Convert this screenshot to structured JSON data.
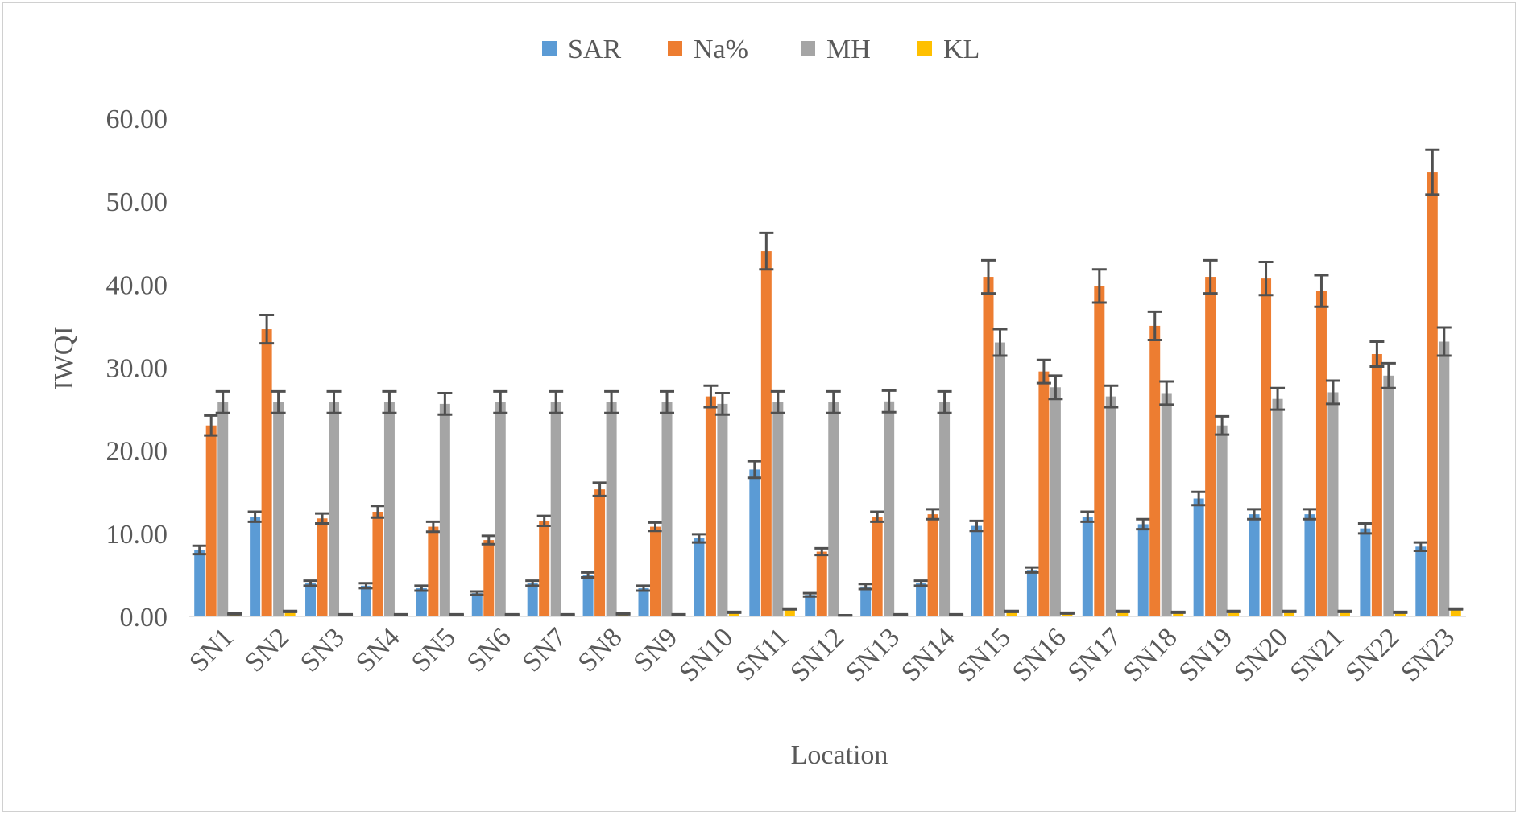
{
  "chart_data": {
    "type": "bar",
    "title": "",
    "xlabel": "Location",
    "ylabel": "IWQI",
    "ylim": [
      0,
      60
    ],
    "yticks": [
      "0.00",
      "10.00",
      "20.00",
      "30.00",
      "40.00",
      "50.00",
      "60.00"
    ],
    "grid": false,
    "legend_position": "top-center",
    "categories": [
      "SN1",
      "SN2",
      "SN3",
      "SN4",
      "SN5",
      "SN6",
      "SN7",
      "SN8",
      "SN9",
      "SN10",
      "SN11",
      "SN12",
      "SN13",
      "SN14",
      "SN15",
      "SN16",
      "SN17",
      "SN18",
      "SN19",
      "SN20",
      "SN21",
      "SN22",
      "SN23"
    ],
    "series": [
      {
        "name": "SAR",
        "color": "#5B9BD5",
        "values": [
          8.0,
          12.0,
          4.0,
          3.7,
          3.4,
          2.8,
          4.0,
          5.0,
          3.4,
          9.4,
          17.7,
          2.6,
          3.6,
          4.0,
          10.9,
          5.6,
          12.0,
          11.1,
          14.2,
          12.3,
          12.3,
          10.6,
          8.4
        ],
        "errors": [
          0.5,
          0.6,
          0.3,
          0.3,
          0.3,
          0.2,
          0.3,
          0.3,
          0.3,
          0.5,
          1.0,
          0.2,
          0.3,
          0.3,
          0.6,
          0.3,
          0.6,
          0.6,
          0.8,
          0.6,
          0.6,
          0.6,
          0.5
        ]
      },
      {
        "name": "Na%",
        "color": "#ED7D31",
        "values": [
          23.0,
          34.6,
          11.8,
          12.6,
          10.8,
          9.2,
          11.5,
          15.3,
          10.8,
          26.5,
          44.0,
          7.8,
          12.0,
          12.3,
          40.9,
          29.5,
          39.8,
          35.0,
          40.9,
          40.7,
          39.2,
          31.6,
          53.5
        ],
        "errors": [
          1.2,
          1.7,
          0.6,
          0.7,
          0.6,
          0.5,
          0.6,
          0.8,
          0.5,
          1.3,
          2.2,
          0.4,
          0.6,
          0.6,
          2.0,
          1.4,
          2.0,
          1.7,
          2.0,
          2.0,
          1.9,
          1.5,
          2.7
        ]
      },
      {
        "name": "MH",
        "color": "#A5A5A5",
        "values": [
          25.8,
          25.8,
          25.8,
          25.8,
          25.6,
          25.8,
          25.8,
          25.8,
          25.8,
          25.6,
          25.8,
          25.8,
          25.9,
          25.8,
          33.0,
          27.6,
          26.5,
          26.9,
          23.0,
          26.2,
          27.0,
          29.0,
          33.1
        ],
        "errors": [
          1.3,
          1.3,
          1.3,
          1.3,
          1.3,
          1.3,
          1.3,
          1.3,
          1.3,
          1.3,
          1.3,
          1.3,
          1.3,
          1.3,
          1.6,
          1.4,
          1.3,
          1.4,
          1.1,
          1.3,
          1.4,
          1.5,
          1.7
        ]
      },
      {
        "name": "KL",
        "color": "#FFC000",
        "values": [
          0.3,
          0.6,
          0.2,
          0.2,
          0.2,
          0.2,
          0.2,
          0.3,
          0.2,
          0.5,
          0.9,
          0.1,
          0.2,
          0.2,
          0.6,
          0.4,
          0.6,
          0.5,
          0.6,
          0.6,
          0.6,
          0.5,
          0.9
        ],
        "errors": [
          0.05,
          0.05,
          0.05,
          0.05,
          0.05,
          0.05,
          0.05,
          0.05,
          0.05,
          0.05,
          0.05,
          0.05,
          0.05,
          0.05,
          0.05,
          0.05,
          0.05,
          0.05,
          0.05,
          0.05,
          0.05,
          0.05,
          0.05
        ]
      }
    ]
  }
}
